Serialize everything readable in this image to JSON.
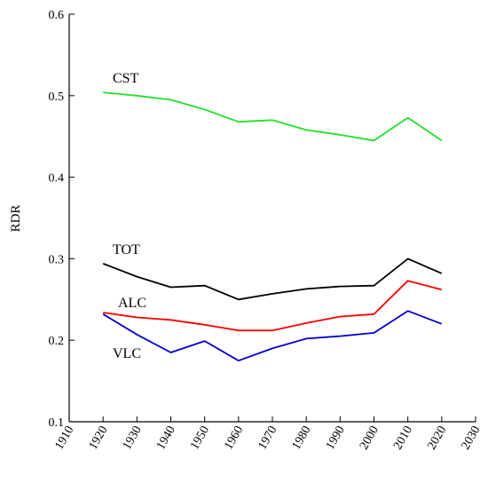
{
  "chart_data": {
    "type": "line",
    "title": "",
    "xlabel": "",
    "ylabel": "RDR",
    "xlim": [
      1910,
      2030
    ],
    "ylim": [
      0.1,
      0.6
    ],
    "x_ticks": [
      1910,
      1920,
      1930,
      1940,
      1950,
      1960,
      1970,
      1980,
      1990,
      2000,
      2010,
      2020,
      2030
    ],
    "y_ticks": [
      0.1,
      0.2,
      0.3,
      0.4,
      0.5,
      0.6
    ],
    "x": [
      1920,
      1930,
      1940,
      1950,
      1960,
      1970,
      1980,
      1990,
      2000,
      2010,
      2020
    ],
    "grid": false,
    "series": [
      {
        "name": "CST",
        "color": "#22e02a",
        "values": [
          0.504,
          0.5,
          0.495,
          0.483,
          0.468,
          0.47,
          0.458,
          0.452,
          0.445,
          0.473,
          0.445
        ]
      },
      {
        "name": "TOT",
        "color": "#000000",
        "values": [
          0.294,
          0.278,
          0.265,
          0.267,
          0.25,
          0.257,
          0.263,
          0.266,
          0.267,
          0.3,
          0.282
        ]
      },
      {
        "name": "ALC",
        "color": "#ff0000",
        "values": [
          0.234,
          0.228,
          0.225,
          0.219,
          0.212,
          0.212,
          0.221,
          0.229,
          0.232,
          0.273,
          0.262
        ]
      },
      {
        "name": "VLC",
        "color": "#0000cc",
        "values": [
          0.232,
          0.207,
          0.185,
          0.199,
          0.175,
          0.19,
          0.202,
          0.205,
          0.209,
          0.236,
          0.22
        ]
      }
    ]
  }
}
